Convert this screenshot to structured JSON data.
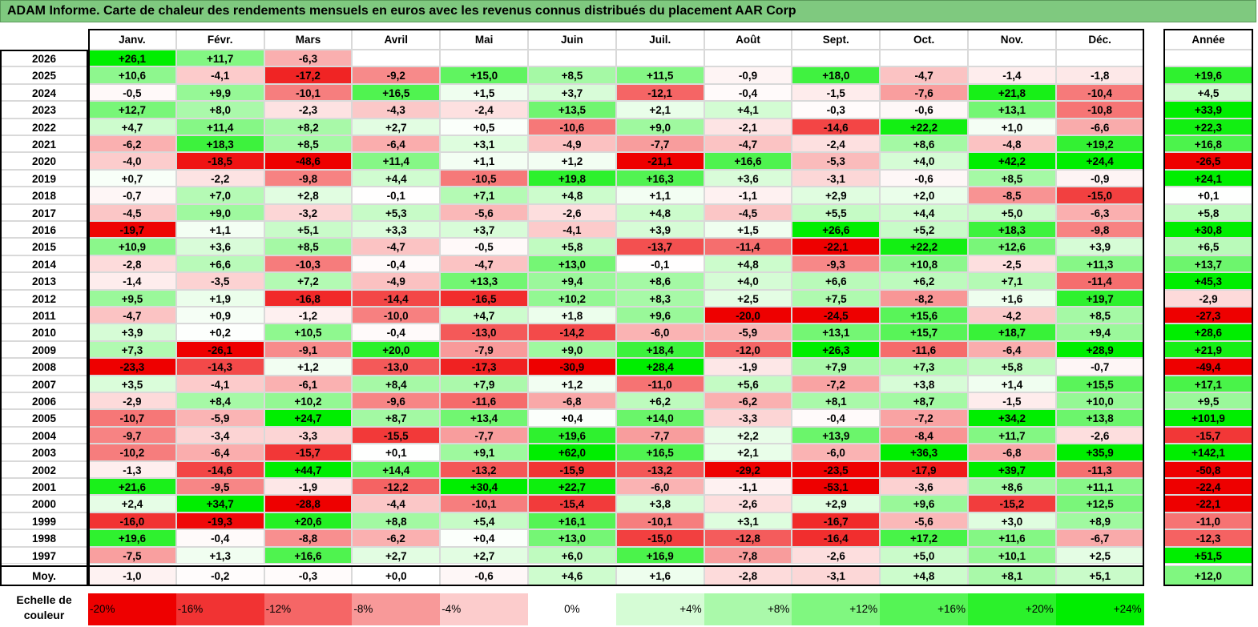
{
  "title": "ADAM Informe. Carte de chaleur des rendements mensuels en euros avec les revenus connus distribués du placement AAR Corp",
  "chart_data": {
    "type": "heatmap",
    "columns": [
      "Janv.",
      "Févr.",
      "Mars",
      "Avril",
      "Mai",
      "Juin",
      "Juil.",
      "Août",
      "Sept.",
      "Oct.",
      "Nov.",
      "Déc."
    ],
    "year_header": "Année",
    "rows": [
      {
        "label": "2026",
        "values": [
          "+26,1",
          "+11,7",
          "-6,3",
          "",
          "",
          "",
          "",
          "",
          "",
          "",
          "",
          ""
        ],
        "year": ""
      },
      {
        "label": "2025",
        "values": [
          "+10,6",
          "-4,1",
          "-17,2",
          "-9,2",
          "+15,0",
          "+8,5",
          "+11,5",
          "-0,9",
          "+18,0",
          "-4,7",
          "-1,4",
          "-1,8"
        ],
        "year": "+19,6"
      },
      {
        "label": "2024",
        "values": [
          "-0,5",
          "+9,9",
          "-10,1",
          "+16,5",
          "+1,5",
          "+3,7",
          "-12,1",
          "-0,4",
          "-1,5",
          "-7,6",
          "+21,8",
          "-10,4"
        ],
        "year": "+4,5"
      },
      {
        "label": "2023",
        "values": [
          "+12,7",
          "+8,0",
          "-2,3",
          "-4,3",
          "-2,4",
          "+13,5",
          "+2,1",
          "+4,1",
          "-0,3",
          "-0,6",
          "+13,1",
          "-10,8"
        ],
        "year": "+33,9"
      },
      {
        "label": "2022",
        "values": [
          "+4,7",
          "+11,4",
          "+8,2",
          "+2,7",
          "+0,5",
          "-10,6",
          "+9,0",
          "-2,1",
          "-14,6",
          "+22,2",
          "+1,0",
          "-6,6"
        ],
        "year": "+22,3"
      },
      {
        "label": "2021",
        "values": [
          "-6,2",
          "+18,3",
          "+8,5",
          "-6,4",
          "+3,1",
          "-4,9",
          "-7,7",
          "-4,7",
          "-2,4",
          "+8,6",
          "-4,8",
          "+19,2"
        ],
        "year": "+16,8"
      },
      {
        "label": "2020",
        "values": [
          "-4,0",
          "-18,5",
          "-48,6",
          "+11,4",
          "+1,1",
          "+1,2",
          "-21,1",
          "+16,6",
          "-5,3",
          "+4,0",
          "+42,2",
          "+24,4"
        ],
        "year": "-26,5"
      },
      {
        "label": "2019",
        "values": [
          "+0,7",
          "-2,2",
          "-9,8",
          "+4,4",
          "-10,5",
          "+19,8",
          "+16,3",
          "+3,6",
          "-3,1",
          "-0,6",
          "+8,5",
          "-0,9"
        ],
        "year": "+24,1"
      },
      {
        "label": "2018",
        "values": [
          "-0,7",
          "+7,0",
          "+2,8",
          "-0,1",
          "+7,1",
          "+4,8",
          "+1,1",
          "-1,1",
          "+2,9",
          "+2,0",
          "-8,5",
          "-15,0"
        ],
        "year": "+0,1"
      },
      {
        "label": "2017",
        "values": [
          "-4,5",
          "+9,0",
          "-3,2",
          "+5,3",
          "-5,6",
          "-2,6",
          "+4,8",
          "-4,5",
          "+5,5",
          "+4,4",
          "+5,0",
          "-6,3"
        ],
        "year": "+5,8"
      },
      {
        "label": "2016",
        "values": [
          "-19,7",
          "+1,1",
          "+5,1",
          "+3,3",
          "+3,7",
          "-4,1",
          "+3,9",
          "+1,5",
          "+26,6",
          "+5,2",
          "+18,3",
          "-9,8"
        ],
        "year": "+30,8"
      },
      {
        "label": "2015",
        "values": [
          "+10,9",
          "+3,6",
          "+8,5",
          "-4,7",
          "-0,5",
          "+5,8",
          "-13,7",
          "-11,4",
          "-22,1",
          "+22,2",
          "+12,6",
          "+3,9"
        ],
        "year": "+6,5"
      },
      {
        "label": "2014",
        "values": [
          "-2,8",
          "+6,6",
          "-10,3",
          "-0,4",
          "-4,7",
          "+13,0",
          "-0,1",
          "+4,8",
          "-9,3",
          "+10,8",
          "-2,5",
          "+11,3"
        ],
        "year": "+13,7"
      },
      {
        "label": "2013",
        "values": [
          "-1,4",
          "-3,5",
          "+7,2",
          "-4,9",
          "+13,3",
          "+9,4",
          "+8,6",
          "+4,0",
          "+6,6",
          "+6,2",
          "+7,1",
          "-11,4"
        ],
        "year": "+45,3"
      },
      {
        "label": "2012",
        "values": [
          "+9,5",
          "+1,9",
          "-16,8",
          "-14,4",
          "-16,5",
          "+10,2",
          "+8,3",
          "+2,5",
          "+7,5",
          "-8,2",
          "+1,6",
          "+19,7"
        ],
        "year": "-2,9"
      },
      {
        "label": "2011",
        "values": [
          "-4,7",
          "+0,9",
          "-1,2",
          "-10,0",
          "+4,7",
          "+1,8",
          "+9,6",
          "-20,0",
          "-24,5",
          "+15,6",
          "-4,2",
          "+8,5"
        ],
        "year": "-27,3"
      },
      {
        "label": "2010",
        "values": [
          "+3,9",
          "+0,2",
          "+10,5",
          "-0,4",
          "-13,0",
          "-14,2",
          "-6,0",
          "-5,9",
          "+13,1",
          "+15,7",
          "+18,7",
          "+9,4"
        ],
        "year": "+28,6"
      },
      {
        "label": "2009",
        "values": [
          "+7,3",
          "-26,1",
          "-9,1",
          "+20,0",
          "-7,9",
          "+9,0",
          "+18,4",
          "-12,0",
          "+26,3",
          "-11,6",
          "-6,4",
          "+28,9"
        ],
        "year": "+21,9"
      },
      {
        "label": "2008",
        "values": [
          "-23,3",
          "-14,3",
          "+1,2",
          "-13,0",
          "-17,3",
          "-30,9",
          "+28,4",
          "-1,9",
          "+7,9",
          "+7,3",
          "+5,8",
          "-0,7"
        ],
        "year": "-49,4"
      },
      {
        "label": "2007",
        "values": [
          "+3,5",
          "-4,1",
          "-6,1",
          "+8,4",
          "+7,9",
          "+1,2",
          "-11,0",
          "+5,6",
          "-7,2",
          "+3,8",
          "+1,4",
          "+15,5"
        ],
        "year": "+17,1"
      },
      {
        "label": "2006",
        "values": [
          "-2,9",
          "+8,4",
          "+10,2",
          "-9,6",
          "-11,6",
          "-6,8",
          "+6,2",
          "-6,2",
          "+8,1",
          "+8,7",
          "-1,5",
          "+10,0"
        ],
        "year": "+9,5"
      },
      {
        "label": "2005",
        "values": [
          "-10,7",
          "-5,9",
          "+24,7",
          "+8,7",
          "+13,4",
          "+0,4",
          "+14,0",
          "-3,3",
          "-0,4",
          "-7,2",
          "+34,2",
          "+13,8"
        ],
        "year": "+101,9"
      },
      {
        "label": "2004",
        "values": [
          "-9,7",
          "-3,4",
          "-3,3",
          "-15,5",
          "-7,7",
          "+19,6",
          "-7,7",
          "+2,2",
          "+13,9",
          "-8,4",
          "+11,7",
          "-2,6"
        ],
        "year": "-15,7"
      },
      {
        "label": "2003",
        "values": [
          "-10,2",
          "-6,4",
          "-15,7",
          "+0,1",
          "+9,1",
          "+62,0",
          "+16,5",
          "+2,1",
          "-6,0",
          "+36,3",
          "-6,8",
          "+35,9"
        ],
        "year": "+142,1"
      },
      {
        "label": "2002",
        "values": [
          "-1,3",
          "-14,6",
          "+44,7",
          "+14,4",
          "-13,2",
          "-15,9",
          "-13,2",
          "-29,2",
          "-23,5",
          "-17,9",
          "+39,7",
          "-11,3"
        ],
        "year": "-50,8"
      },
      {
        "label": "2001",
        "values": [
          "+21,6",
          "-9,5",
          "-1,9",
          "-12,2",
          "+30,4",
          "+22,7",
          "-6,0",
          "-1,1",
          "-53,1",
          "-3,6",
          "+8,6",
          "+11,1"
        ],
        "year": "-22,4"
      },
      {
        "label": "2000",
        "values": [
          "+2,4",
          "+34,7",
          "-28,8",
          "-4,4",
          "-10,1",
          "-15,4",
          "+3,8",
          "-2,6",
          "+2,9",
          "+9,6",
          "-15,2",
          "+12,5"
        ],
        "year": "-22,1"
      },
      {
        "label": "1999",
        "values": [
          "-16,0",
          "-19,3",
          "+20,6",
          "+8,8",
          "+5,4",
          "+16,1",
          "-10,1",
          "+3,1",
          "-16,7",
          "-5,6",
          "+3,0",
          "+8,9"
        ],
        "year": "-11,0"
      },
      {
        "label": "1998",
        "values": [
          "+19,6",
          "-0,4",
          "-8,8",
          "-6,2",
          "+0,4",
          "+13,0",
          "-15,0",
          "-12,8",
          "-16,4",
          "+17,2",
          "+11,6",
          "-6,7"
        ],
        "year": "-12,3"
      },
      {
        "label": "1997",
        "values": [
          "-7,5",
          "+1,3",
          "+16,6",
          "+2,7",
          "+2,7",
          "+6,0",
          "+16,9",
          "-7,8",
          "-2,6",
          "+5,0",
          "+10,1",
          "+2,5"
        ],
        "year": "+51,5"
      }
    ],
    "average": {
      "label": "Moy.",
      "values": [
        "-1,0",
        "-0,2",
        "-0,3",
        "+0,0",
        "-0,6",
        "+4,6",
        "+1,6",
        "-2,8",
        "-3,1",
        "+4,8",
        "+8,1",
        "+5,1"
      ],
      "year": "+12,0"
    },
    "legend": {
      "label": "Echelle de couleur",
      "steps": [
        {
          "text": "-20%",
          "value": -20
        },
        {
          "text": "-16%",
          "value": -16
        },
        {
          "text": "-12%",
          "value": -12
        },
        {
          "text": "-8%",
          "value": -8
        },
        {
          "text": "-4%",
          "value": -4
        },
        {
          "text": "0%",
          "value": 0
        },
        {
          "text": "+4%",
          "value": 4
        },
        {
          "text": "+8%",
          "value": 8
        },
        {
          "text": "+12%",
          "value": 12
        },
        {
          "text": "+16%",
          "value": 16
        },
        {
          "text": "+20%",
          "value": 20
        },
        {
          "text": "+24%",
          "value": 24
        }
      ]
    }
  }
}
